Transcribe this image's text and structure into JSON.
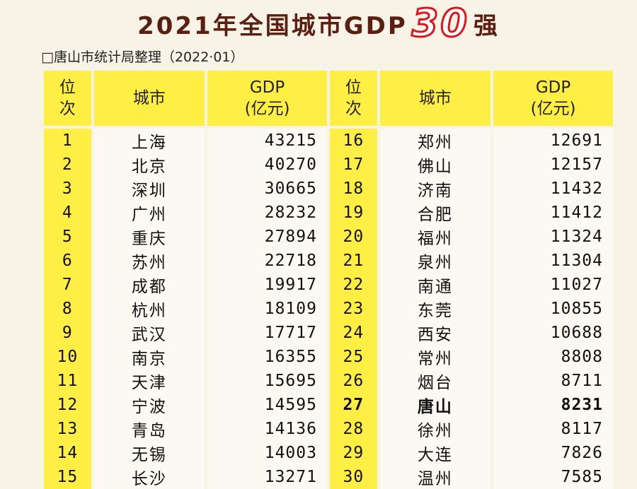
{
  "title": {
    "before": "2021年全国城市GDP",
    "number": "30",
    "after": "强"
  },
  "source": "□唐山市统计局整理（2022·01）",
  "headers": {
    "rank": "位次",
    "city": "城市",
    "gdp_line1": "GDP",
    "gdp_line2": "(亿元)"
  },
  "rows": [
    {
      "left": {
        "rank": "1",
        "city": "上海",
        "gdp": "43215"
      },
      "right": {
        "rank": "16",
        "city": "郑州",
        "gdp": "12691"
      }
    },
    {
      "left": {
        "rank": "2",
        "city": "北京",
        "gdp": "40270"
      },
      "right": {
        "rank": "17",
        "city": "佛山",
        "gdp": "12157"
      }
    },
    {
      "left": {
        "rank": "3",
        "city": "深圳",
        "gdp": "30665"
      },
      "right": {
        "rank": "18",
        "city": "济南",
        "gdp": "11432"
      }
    },
    {
      "left": {
        "rank": "4",
        "city": "广州",
        "gdp": "28232"
      },
      "right": {
        "rank": "19",
        "city": "合肥",
        "gdp": "11412"
      }
    },
    {
      "left": {
        "rank": "5",
        "city": "重庆",
        "gdp": "27894"
      },
      "right": {
        "rank": "20",
        "city": "福州",
        "gdp": "11324"
      }
    },
    {
      "left": {
        "rank": "6",
        "city": "苏州",
        "gdp": "22718"
      },
      "right": {
        "rank": "21",
        "city": "泉州",
        "gdp": "11304"
      }
    },
    {
      "left": {
        "rank": "7",
        "city": "成都",
        "gdp": "19917"
      },
      "right": {
        "rank": "22",
        "city": "南通",
        "gdp": "11027"
      }
    },
    {
      "left": {
        "rank": "8",
        "city": "杭州",
        "gdp": "18109"
      },
      "right": {
        "rank": "23",
        "city": "东莞",
        "gdp": "10855"
      }
    },
    {
      "left": {
        "rank": "9",
        "city": "武汉",
        "gdp": "17717"
      },
      "right": {
        "rank": "24",
        "city": "西安",
        "gdp": "10688"
      }
    },
    {
      "left": {
        "rank": "10",
        "city": "南京",
        "gdp": "16355"
      },
      "right": {
        "rank": "25",
        "city": "常州",
        "gdp": "8808"
      }
    },
    {
      "left": {
        "rank": "11",
        "city": "天津",
        "gdp": "15695"
      },
      "right": {
        "rank": "26",
        "city": "烟台",
        "gdp": "8711"
      }
    },
    {
      "left": {
        "rank": "12",
        "city": "宁波",
        "gdp": "14595"
      },
      "right": {
        "rank": "27",
        "city": "唐山",
        "gdp": "8231"
      }
    },
    {
      "left": {
        "rank": "13",
        "city": "青岛",
        "gdp": "14136"
      },
      "right": {
        "rank": "28",
        "city": "徐州",
        "gdp": "8117"
      }
    },
    {
      "left": {
        "rank": "14",
        "city": "无锡",
        "gdp": "14003"
      },
      "right": {
        "rank": "29",
        "city": "大连",
        "gdp": "7826"
      }
    },
    {
      "left": {
        "rank": "15",
        "city": "长沙",
        "gdp": "13271"
      },
      "right": {
        "rank": "30",
        "city": "温州",
        "gdp": "7585"
      }
    }
  ],
  "highlight_rank": "27",
  "colors": {
    "header_bg": "#ffee44",
    "rank_bg": "#ffee44",
    "cell_bg": "#fbf9f2",
    "title_text": "#5a1f10",
    "title_accent": "#e0141a"
  }
}
